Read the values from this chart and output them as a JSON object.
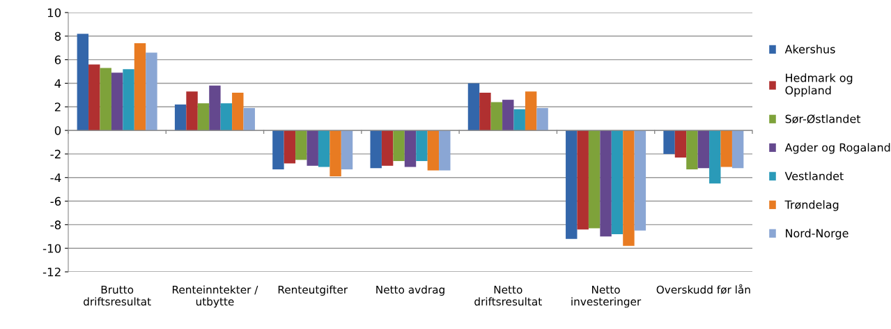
{
  "chart_data": {
    "type": "bar",
    "categories": [
      "Brutto\ndriftsresultat",
      "Renteinntekter /\nutbytte",
      "Renteutgifter",
      "Netto avdrag",
      "Netto\ndriftsresultat",
      "Netto\ninvesteringer",
      "Overskudd før lån"
    ],
    "series": [
      {
        "name": "Akershus",
        "color": "#3366aa",
        "values": [
          8.2,
          2.2,
          -3.3,
          -3.2,
          4.0,
          -9.2,
          -2.0
        ]
      },
      {
        "name": "Hedmark og\nOppland",
        "color": "#b03030",
        "values": [
          5.6,
          3.3,
          -2.8,
          -3.0,
          3.2,
          -8.4,
          -2.3
        ]
      },
      {
        "name": "Sør-Østlandet",
        "color": "#7ea23a",
        "values": [
          5.3,
          2.3,
          -2.5,
          -2.6,
          2.4,
          -8.3,
          -3.3
        ]
      },
      {
        "name": "Agder og Rogaland",
        "color": "#64488e",
        "values": [
          4.9,
          3.8,
          -3.0,
          -3.1,
          2.6,
          -9.0,
          -3.2
        ]
      },
      {
        "name": "Vestlandet",
        "color": "#2a9ab8",
        "values": [
          5.2,
          2.3,
          -3.1,
          -2.6,
          1.8,
          -8.8,
          -4.5
        ]
      },
      {
        "name": "Trøndelag",
        "color": "#e87b22",
        "values": [
          7.4,
          3.2,
          -3.9,
          -3.4,
          3.3,
          -9.8,
          -3.1
        ]
      },
      {
        "name": "Nord-Norge",
        "color": "#8aa6d4",
        "values": [
          6.6,
          1.9,
          -3.3,
          -3.4,
          1.9,
          -8.5,
          -3.2
        ]
      }
    ],
    "ylim": [
      -12,
      10
    ],
    "yticks": [
      -12,
      -10,
      -8,
      -6,
      -4,
      -2,
      0,
      2,
      4,
      6,
      8,
      10
    ],
    "grid": "y",
    "legend": "right"
  }
}
